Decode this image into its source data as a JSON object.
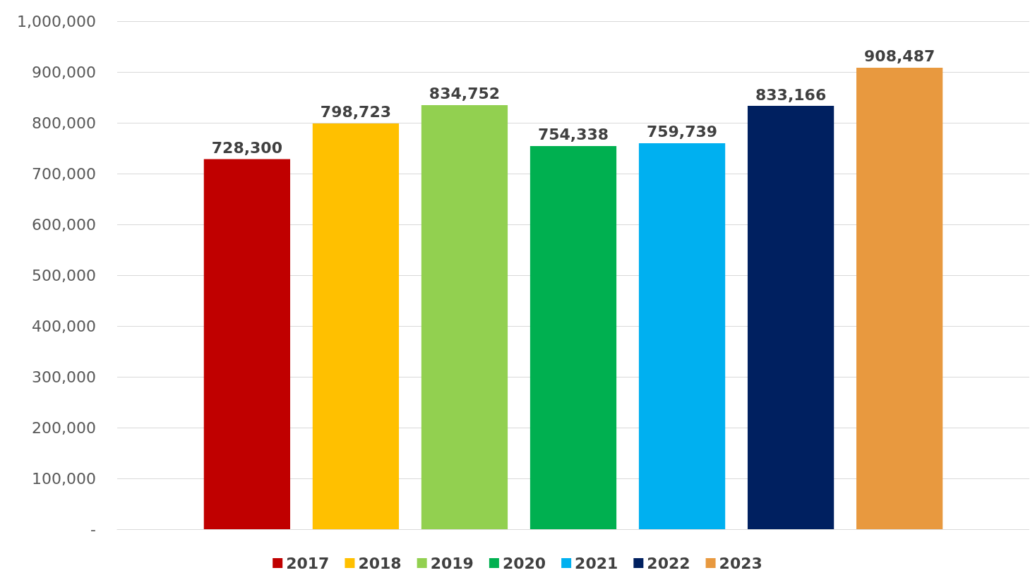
{
  "chart_data": {
    "type": "bar",
    "categories": [
      null
    ],
    "series": [
      {
        "name": "2017",
        "color": "#c00000",
        "values": [
          728300
        ],
        "value_labels": [
          "728,300"
        ]
      },
      {
        "name": "2018",
        "color": "#ffc000",
        "values": [
          798723
        ],
        "value_labels": [
          "798,723"
        ]
      },
      {
        "name": "2019",
        "color": "#92d050",
        "values": [
          834752
        ],
        "value_labels": [
          "834,752"
        ]
      },
      {
        "name": "2020",
        "color": "#00b050",
        "values": [
          754338
        ],
        "value_labels": [
          "754,338"
        ]
      },
      {
        "name": "2021",
        "color": "#00b0f0",
        "values": [
          759739
        ],
        "value_labels": [
          "759,739"
        ]
      },
      {
        "name": "2022",
        "color": "#002060",
        "values": [
          833166
        ],
        "value_labels": [
          "833,166"
        ]
      },
      {
        "name": "2023",
        "color": "#e8993f",
        "values": [
          908487
        ],
        "value_labels": [
          "908,487"
        ]
      }
    ],
    "ylim": [
      0,
      1000000
    ],
    "yticks": [
      {
        "value": 0,
        "label": "-"
      },
      {
        "value": 100000,
        "label": "100,000"
      },
      {
        "value": 200000,
        "label": "200,000"
      },
      {
        "value": 300000,
        "label": "300,000"
      },
      {
        "value": 400000,
        "label": "400,000"
      },
      {
        "value": 500000,
        "label": "500,000"
      },
      {
        "value": 600000,
        "label": "600,000"
      },
      {
        "value": 700000,
        "label": "700,000"
      },
      {
        "value": 800000,
        "label": "800,000"
      },
      {
        "value": 900000,
        "label": "900,000"
      },
      {
        "value": 1000000,
        "label": "1,000,000"
      }
    ],
    "grid": "y",
    "legend": "bottom"
  }
}
